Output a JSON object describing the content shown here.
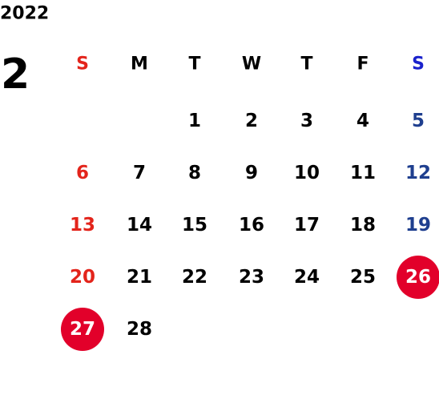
{
  "calendar": {
    "year": "2022",
    "month": 2,
    "weekdays": [
      "S",
      "M",
      "T",
      "W",
      "T",
      "F",
      "S"
    ],
    "weeks": [
      [
        null,
        null,
        {
          "day": 1
        },
        {
          "day": 2
        },
        {
          "day": 3
        },
        {
          "day": 4
        },
        {
          "day": 5
        }
      ],
      [
        {
          "day": 6
        },
        {
          "day": 7
        },
        {
          "day": 8
        },
        {
          "day": 9
        },
        {
          "day": 10
        },
        {
          "day": 11
        },
        {
          "day": 12
        }
      ],
      [
        {
          "day": 13
        },
        {
          "day": 14
        },
        {
          "day": 15
        },
        {
          "day": 16
        },
        {
          "day": 17
        },
        {
          "day": 18
        },
        {
          "day": 19
        }
      ],
      [
        {
          "day": 20
        },
        {
          "day": 21
        },
        {
          "day": 22
        },
        {
          "day": 23
        },
        {
          "day": 24
        },
        {
          "day": 25
        },
        {
          "day": 26,
          "highlight": true
        }
      ],
      [
        {
          "day": 27,
          "highlight": true
        },
        {
          "day": 28
        },
        null,
        null,
        null,
        null,
        null
      ]
    ],
    "colors": {
      "sunday": "#e3241b",
      "saturday_header": "#1a22cc",
      "saturday": "#1f3f8f",
      "weekday": "#000000",
      "highlight": "#e2002a",
      "highlight_text": "#ffffff"
    }
  }
}
